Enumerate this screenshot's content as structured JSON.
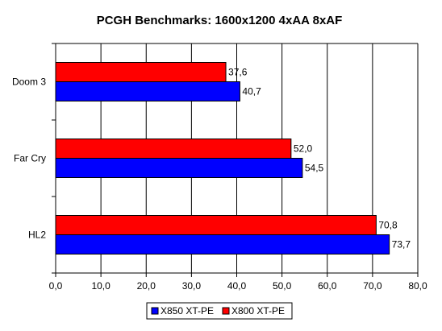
{
  "chart_data": {
    "type": "bar",
    "orientation": "horizontal",
    "title": "PCGH Benchmarks: 1600x1200 4xAA 8xAF",
    "categories": [
      "Doom 3",
      "Far Cry",
      "HL2"
    ],
    "series": [
      {
        "name": "X800 XT-PE",
        "color": "#ff0000",
        "values": [
          37.6,
          52.0,
          70.8
        ],
        "labels": [
          "37,6",
          "52,0",
          "70,8"
        ]
      },
      {
        "name": "X850 XT-PE",
        "color": "#0000ff",
        "values": [
          40.7,
          54.5,
          73.7
        ],
        "labels": [
          "40,7",
          "54,5",
          "73,7"
        ]
      }
    ],
    "xlim": [
      0,
      80
    ],
    "xticks": [
      0,
      10,
      20,
      30,
      40,
      50,
      60,
      70,
      80
    ],
    "xtick_labels": [
      "0,0",
      "10,0",
      "20,0",
      "30,0",
      "40,0",
      "50,0",
      "60,0",
      "70,0",
      "80,0"
    ],
    "legend": {
      "placement": "bottom-center",
      "entries": [
        {
          "name": "X850 XT-PE",
          "color": "#0000ff"
        },
        {
          "name": "X800 XT-PE",
          "color": "#ff0000"
        }
      ]
    },
    "grid": "vertical"
  }
}
